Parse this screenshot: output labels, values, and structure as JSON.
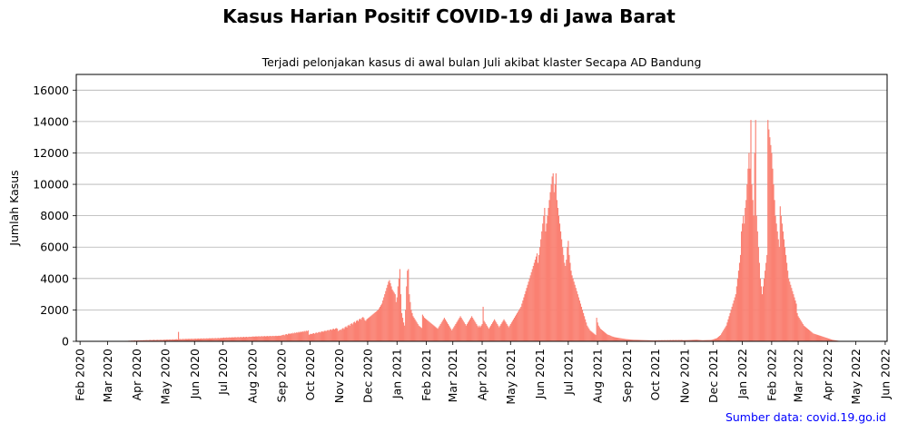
{
  "chart_data": {
    "type": "bar",
    "title": "Kasus Harian Positif COVID-19 di Jawa Barat",
    "subtitle": "Terjadi pelonjakan kasus di awal bulan Juli akibat klaster Secapa AD Bandung",
    "xlabel": "",
    "ylabel": "Jumlah Kasus",
    "ylim": [
      0,
      17000
    ],
    "xlim": [
      "2020-01-28",
      "2022-06-03"
    ],
    "yticks": [
      0,
      2000,
      4000,
      6000,
      8000,
      10000,
      12000,
      14000,
      16000
    ],
    "ytick_labels": [
      "0",
      "2000",
      "4000",
      "6000",
      "8000",
      "10000",
      "12000",
      "14000",
      "16000"
    ],
    "xtick_labels": [
      "Feb 2020",
      "Mar 2020",
      "Apr 2020",
      "May 2020",
      "Jun 2020",
      "Jul 2020",
      "Aug 2020",
      "Sep 2020",
      "Oct 2020",
      "Nov 2020",
      "Dec 2020",
      "Jan 2021",
      "Feb 2021",
      "Mar 2021",
      "Apr 2021",
      "May 2021",
      "Jun 2021",
      "Jul 2021",
      "Aug 2021",
      "Sep 2021",
      "Oct 2021",
      "Nov 2021",
      "Dec 2021",
      "Jan 2022",
      "Feb 2022",
      "Mar 2022",
      "Apr 2022",
      "May 2022",
      "Jun 2022"
    ],
    "grid": "horizontal",
    "bar_color": "#fa8072",
    "daily_cases": {
      "start": "2020-03-01",
      "values": [
        0,
        2,
        1,
        0,
        3,
        4,
        2,
        5,
        3,
        6,
        8,
        10,
        7,
        12,
        15,
        10,
        20,
        18,
        25,
        22,
        30,
        28,
        35,
        40,
        38,
        45,
        50,
        42,
        55,
        60,
        48,
        52,
        58,
        62,
        55,
        70,
        65,
        60,
        75,
        68,
        72,
        80,
        78,
        70,
        85,
        90,
        82,
        76,
        88,
        95,
        84,
        80,
        92,
        98,
        86,
        90,
        100,
        95,
        88,
        94,
        110,
        95,
        105,
        120,
        100,
        115,
        125,
        108,
        118,
        130,
        112,
        122,
        128,
        135,
        120,
        600,
        140,
        150,
        130,
        145,
        155,
        138,
        148,
        160,
        142,
        152,
        165,
        148,
        158,
        170,
        150,
        160,
        165,
        175,
        155,
        170,
        180,
        162,
        172,
        185,
        168,
        178,
        190,
        172,
        182,
        195,
        175,
        188,
        200,
        182,
        192,
        205,
        185,
        195,
        210,
        190,
        200,
        215,
        195,
        205,
        220,
        210,
        225,
        240,
        220,
        235,
        250,
        228,
        242,
        255,
        235,
        248,
        260,
        240,
        255,
        270,
        245,
        260,
        275,
        250,
        265,
        280,
        255,
        270,
        285,
        260,
        275,
        290,
        265,
        280,
        295,
        285,
        290,
        300,
        310,
        295,
        305,
        320,
        300,
        315,
        325,
        305,
        318,
        330,
        310,
        322,
        335,
        315,
        325,
        340,
        320,
        330,
        345,
        325,
        335,
        350,
        330,
        340,
        355,
        335,
        345,
        360,
        350,
        360,
        380,
        400,
        420,
        380,
        440,
        460,
        420,
        480,
        500,
        460,
        520,
        480,
        540,
        500,
        560,
        520,
        580,
        540,
        600,
        560,
        620,
        580,
        640,
        600,
        660,
        620,
        680,
        640,
        700,
        420,
        450,
        480,
        460,
        500,
        520,
        480,
        540,
        560,
        520,
        580,
        600,
        560,
        620,
        640,
        600,
        660,
        680,
        640,
        700,
        720,
        680,
        740,
        760,
        720,
        780,
        800,
        760,
        820,
        840,
        800,
        650,
        700,
        750,
        720,
        800,
        850,
        780,
        900,
        950,
        880,
        1000,
        1050,
        980,
        1100,
        1150,
        1080,
        1200,
        1250,
        1180,
        1300,
        1350,
        1280,
        1400,
        1450,
        1380,
        1500,
        1550,
        1480,
        1350,
        1300,
        1400,
        1450,
        1500,
        1550,
        1600,
        1650,
        1700,
        1750,
        1800,
        1850,
        1900,
        1950,
        2000,
        2100,
        2200,
        2300,
        2400,
        2600,
        2800,
        3000,
        3200,
        3400,
        3600,
        3800,
        3900,
        3700,
        3500,
        3300,
        3200,
        3100,
        3000,
        2500,
        2800,
        3500,
        4000,
        4600,
        3000,
        1800,
        1500,
        1200,
        1000,
        2000,
        3500,
        4500,
        4600,
        3000,
        2500,
        2000,
        1800,
        1600,
        1500,
        1400,
        1300,
        1200,
        1100,
        1000,
        950,
        900,
        850,
        1700,
        1600,
        1500,
        1450,
        1400,
        1350,
        1300,
        1250,
        1200,
        1150,
        1100,
        1050,
        1000,
        950,
        900,
        850,
        800,
        900,
        1000,
        1100,
        1200,
        1300,
        1400,
        1500,
        1400,
        1300,
        1200,
        1100,
        1000,
        900,
        800,
        700,
        800,
        900,
        1000,
        1100,
        1200,
        1300,
        1400,
        1500,
        1600,
        1500,
        1400,
        1300,
        1200,
        1100,
        1000,
        1100,
        1200,
        1300,
        1400,
        1500,
        1600,
        1500,
        1400,
        1300,
        1200,
        1100,
        1000,
        900,
        1000,
        900,
        1000,
        1100,
        2200,
        1300,
        1200,
        1100,
        1000,
        900,
        800,
        900,
        1000,
        1100,
        1200,
        1300,
        1400,
        1300,
        1200,
        1100,
        1000,
        900,
        1000,
        1100,
        1200,
        1300,
        1400,
        1300,
        1200,
        1100,
        1000,
        900,
        1000,
        1100,
        1200,
        1300,
        1400,
        1500,
        1600,
        1700,
        1800,
        1900,
        2000,
        2100,
        2200,
        2400,
        2600,
        2800,
        3000,
        3200,
        3400,
        3600,
        3800,
        4000,
        4200,
        4400,
        4600,
        4800,
        5000,
        5200,
        5400,
        5600,
        5000,
        5500,
        6000,
        6500,
        7000,
        7500,
        8000,
        8500,
        7000,
        7500,
        8000,
        8500,
        9000,
        9500,
        10000,
        10500,
        10700,
        9500,
        10000,
        10700,
        9000,
        8500,
        8000,
        7500,
        7000,
        6500,
        6000,
        5500,
        5000,
        4800,
        5200,
        6000,
        6400,
        5500,
        5000,
        4500,
        4200,
        4000,
        3800,
        3600,
        3400,
        3200,
        3000,
        2800,
        2600,
        2400,
        2200,
        2000,
        1800,
        1600,
        1400,
        1200,
        1000,
        900,
        800,
        700,
        650,
        600,
        550,
        500,
        450,
        400,
        1500,
        1200,
        1000,
        900,
        800,
        750,
        700,
        650,
        600,
        550,
        500,
        450,
        420,
        400,
        380,
        350,
        320,
        300,
        280,
        260,
        250,
        240,
        230,
        220,
        210,
        200,
        190,
        180,
        170,
        160,
        150,
        140,
        135,
        130,
        125,
        120,
        115,
        110,
        105,
        100,
        98,
        96,
        94,
        92,
        90,
        88,
        86,
        84,
        82,
        80,
        78,
        76,
        74,
        72,
        70,
        68,
        66,
        64,
        62,
        60,
        58,
        60,
        65,
        70,
        62,
        68,
        72,
        66,
        70,
        75,
        68,
        72,
        78,
        70,
        74,
        80,
        72,
        76,
        82,
        74,
        78,
        84,
        76,
        80,
        86,
        78,
        82,
        88,
        80,
        84,
        90,
        70,
        72,
        74,
        76,
        78,
        80,
        82,
        84,
        86,
        88,
        90,
        92,
        94,
        96,
        98,
        100,
        95,
        90,
        85,
        80,
        75,
        70,
        72,
        74,
        76,
        78,
        80,
        82,
        84,
        86,
        88,
        100,
        120,
        140,
        160,
        180,
        200,
        250,
        300,
        350,
        400,
        500,
        600,
        700,
        800,
        900,
        1000,
        1200,
        1400,
        1600,
        1800,
        2000,
        2200,
        2400,
        2600,
        2800,
        3000,
        3500,
        4000,
        4500,
        5000,
        5500,
        7000,
        7500,
        8000,
        7500,
        8500,
        9000,
        10000,
        11000,
        12000,
        11000,
        14100,
        10000,
        9000,
        8000,
        12000,
        14100,
        8000,
        7000,
        6000,
        5000,
        4000,
        3500,
        3000,
        3500,
        4000,
        4500,
        5000,
        5500,
        14100,
        13500,
        13000,
        12500,
        12000,
        11000,
        10000,
        9000,
        8000,
        7500,
        7000,
        6500,
        6000,
        8600,
        8000,
        7500,
        7000,
        6500,
        6000,
        5500,
        5000,
        4500,
        4000,
        3800,
        3600,
        3400,
        3200,
        3000,
        2800,
        2600,
        2400,
        1800,
        1600,
        1500,
        1400,
        1300,
        1200,
        1100,
        1000,
        950,
        900,
        850,
        800,
        750,
        700,
        650,
        600,
        550,
        500,
        480,
        460,
        440,
        420,
        400,
        380,
        360,
        340,
        320,
        300,
        280,
        260,
        240,
        220,
        200,
        180,
        160,
        140,
        120,
        100,
        90,
        80,
        70,
        60,
        50,
        40,
        30,
        25,
        20,
        15,
        10,
        5
      ]
    }
  },
  "source_note": "Sumber data: covid.19.go.id"
}
